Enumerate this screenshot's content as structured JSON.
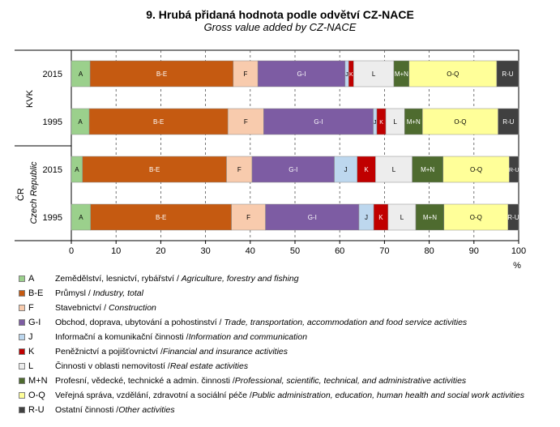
{
  "header": {
    "title": "9. Hrubá přidaná hodnota podle odvětví  CZ-NACE",
    "subtitle": "Gross value added by CZ-NACE"
  },
  "chart_data": {
    "type": "bar",
    "orientation": "horizontal-stacked-100",
    "title": "9. Hrubá přidaná hodnota podle odvětví  CZ-NACE",
    "subtitle": "Gross value added by CZ-NACE",
    "xlabel": "%",
    "xlim": [
      0,
      100
    ],
    "xticks": [
      0,
      10,
      20,
      30,
      40,
      50,
      60,
      70,
      80,
      90,
      100
    ],
    "grid": "vertical dashed",
    "groups": [
      {
        "label": "KVK",
        "label_italic": "",
        "years": [
          "2015",
          "1995"
        ]
      },
      {
        "label": "ČR",
        "label_italic": "Czech Republic",
        "years": [
          "2015",
          "1995"
        ]
      }
    ],
    "segments": [
      {
        "code": "A",
        "color": "#9bd08c"
      },
      {
        "code": "B-E",
        "color": "#c55a11"
      },
      {
        "code": "F",
        "color": "#f8cbad"
      },
      {
        "code": "G-I",
        "color": "#7d5ca3"
      },
      {
        "code": "J",
        "color": "#bdd7ee"
      },
      {
        "code": "K",
        "color": "#c00000"
      },
      {
        "code": "L",
        "color": "#ededed"
      },
      {
        "code": "M+N",
        "color": "#4e6b2f"
      },
      {
        "code": "O-Q",
        "color": "#ffff99"
      },
      {
        "code": "R-U",
        "color": "#404040"
      }
    ],
    "series": [
      {
        "group": "KVK",
        "year": "2015",
        "values": [
          4.2,
          32.0,
          5.5,
          19.5,
          0.8,
          1.1,
          9.0,
          3.4,
          19.6,
          4.9
        ]
      },
      {
        "group": "KVK",
        "year": "1995",
        "values": [
          4.0,
          31.0,
          8.0,
          24.5,
          0.8,
          2.0,
          4.2,
          4.0,
          16.9,
          4.6
        ]
      },
      {
        "group": "ČR",
        "year": "2015",
        "values": [
          2.5,
          32.2,
          5.7,
          18.4,
          5.1,
          4.1,
          8.2,
          6.9,
          14.8,
          2.1
        ]
      },
      {
        "group": "ČR",
        "year": "1995",
        "values": [
          4.3,
          31.5,
          7.6,
          20.9,
          3.3,
          3.2,
          6.2,
          6.3,
          14.3,
          2.4
        ]
      }
    ]
  },
  "legend": [
    {
      "code": "A",
      "color": "#9bd08c",
      "cz": "Zemědělství, lesnictví, rybářství / ",
      "en": "Agriculture, forestry and fishing"
    },
    {
      "code": "B-E",
      "color": "#c55a11",
      "cz": "Průmysl / ",
      "en": "Industry, total"
    },
    {
      "code": "F",
      "color": "#f8cbad",
      "cz": "Stavebnictví / ",
      "en": "Construction"
    },
    {
      "code": "G-I",
      "color": "#7d5ca3",
      "cz": "Obchod, doprava, ubytování a pohostinství / ",
      "en": "Trade, transportation, accommodation and food service activities"
    },
    {
      "code": "J",
      "color": "#bdd7ee",
      "cz": "Informační a komunikační činnosti /",
      "en": "Information and communication"
    },
    {
      "code": "K",
      "color": "#c00000",
      "cz": "Peněžnictví a pojišťovnictví /",
      "en": "Financial and insurance activities"
    },
    {
      "code": "L",
      "color": "#ededed",
      "cz": "Činnosti v oblasti nemovitostí /",
      "en": "Real estate activities"
    },
    {
      "code": "M+N",
      "color": "#4e6b2f",
      "cz": "Profesní, vědecké, technické a admin. činnosti /",
      "en": "Professional, scientific, technical, and administrative activities"
    },
    {
      "code": "O-Q",
      "color": "#ffff99",
      "cz": "Veřejná správa, vzdělání, zdravotní a sociální péče /",
      "en": "Public administration, education, human health  and social work activities"
    },
    {
      "code": "R-U",
      "color": "#404040",
      "cz": "Ostatní činnosti /",
      "en": "Other activities"
    }
  ]
}
